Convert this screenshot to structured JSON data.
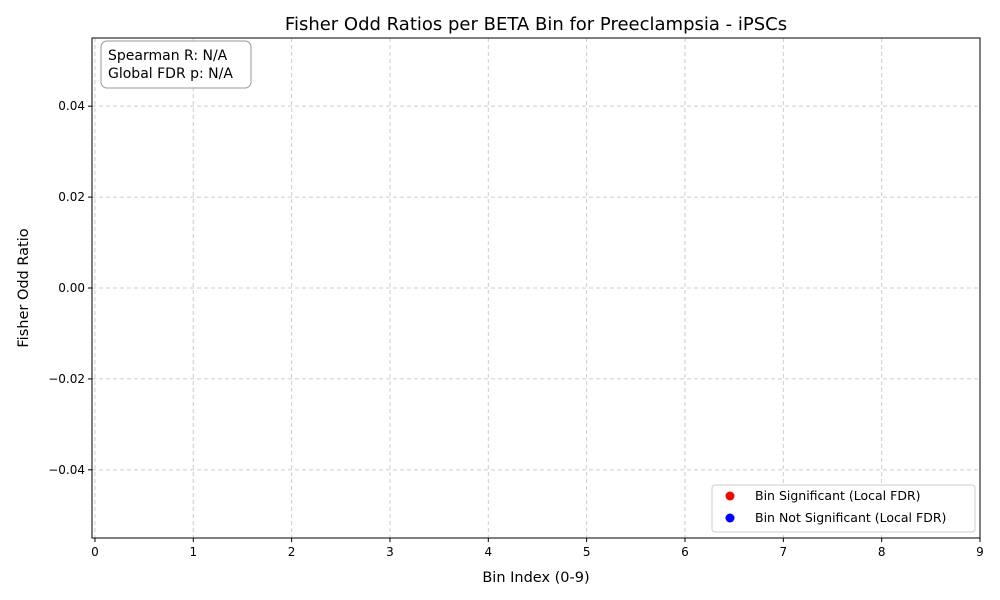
{
  "chart_data": {
    "type": "scatter",
    "title": "Fisher Odd Ratios per BETA Bin for Preeclampsia - iPSCs",
    "xlabel": "Bin Index (0-9)",
    "ylabel": "Fisher Odd Ratio",
    "xlim": [
      -0.03,
      9
    ],
    "ylim": [
      -0.055,
      0.055
    ],
    "xticks": [
      0,
      1,
      2,
      3,
      4,
      5,
      6,
      7,
      8,
      9
    ],
    "yticks": [
      -0.04,
      -0.02,
      0.0,
      0.02,
      0.04
    ],
    "ytick_labels": [
      "−0.04",
      "−0.02",
      "0.00",
      "0.02",
      "0.04"
    ],
    "grid": true,
    "legend_position": "lower-right",
    "series": [
      {
        "name": "Bin Significant (Local FDR)",
        "color": "#ff0000",
        "points": []
      },
      {
        "name": "Bin Not Significant (Local FDR)",
        "color": "#0000ff",
        "points": []
      }
    ],
    "annotation": {
      "line1": "Spearman R: N/A",
      "line2": "Global FDR p: N/A",
      "position": "top-left"
    }
  }
}
